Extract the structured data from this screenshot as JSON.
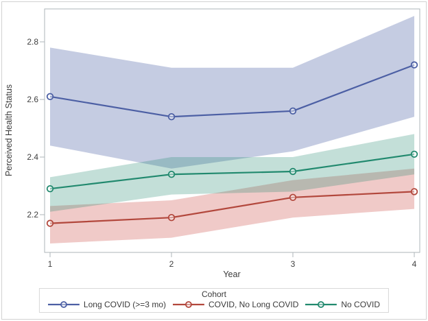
{
  "figure": {
    "ylabel": "Perceived Health Status",
    "xlabel": "Year",
    "legend": {
      "title": "Cohort"
    }
  },
  "chart_data": {
    "type": "line",
    "title": "",
    "xlabel": "Year",
    "ylabel": "Perceived Health Status",
    "x": [
      1,
      2,
      3,
      4
    ],
    "x_tick_labels": [
      "1",
      "2",
      "3",
      "4"
    ],
    "y_ticks": [
      2.2,
      2.4,
      2.6,
      2.8
    ],
    "y_tick_labels": [
      "2.2",
      "2.4",
      "2.6",
      "2.8"
    ],
    "ylim": [
      2.06,
      2.915
    ],
    "xlim": [
      0.95,
      4.05
    ],
    "grid": false,
    "legend_title": "Cohort",
    "legend_position": "bottom",
    "band_type": "confidence-band",
    "series": [
      {
        "name": "Long COVID (>=3 mo)",
        "values": [
          2.61,
          2.54,
          2.56,
          2.72
        ],
        "band_upper": [
          2.78,
          2.71,
          2.71,
          2.89
        ],
        "band_lower": [
          2.44,
          2.36,
          2.42,
          2.54
        ],
        "color": "#4c5fa4",
        "band_color": "rgba(76,95,164,0.32)"
      },
      {
        "name": "COVID, No Long COVID",
        "values": [
          2.17,
          2.19,
          2.26,
          2.28
        ],
        "band_upper": [
          2.23,
          2.25,
          2.32,
          2.36
        ],
        "band_lower": [
          2.1,
          2.12,
          2.19,
          2.22
        ],
        "color": "#b2473c",
        "band_color": "rgba(205,80,72,0.30)"
      },
      {
        "name": "No COVID",
        "values": [
          2.29,
          2.34,
          2.35,
          2.41
        ],
        "band_upper": [
          2.33,
          2.4,
          2.4,
          2.48
        ],
        "band_lower": [
          2.21,
          2.27,
          2.28,
          2.34
        ],
        "color": "#21896e",
        "band_color": "rgba(33,137,110,0.27)"
      }
    ],
    "axis_color": "#aeb4b9",
    "text_color": "#3a3a3a"
  }
}
